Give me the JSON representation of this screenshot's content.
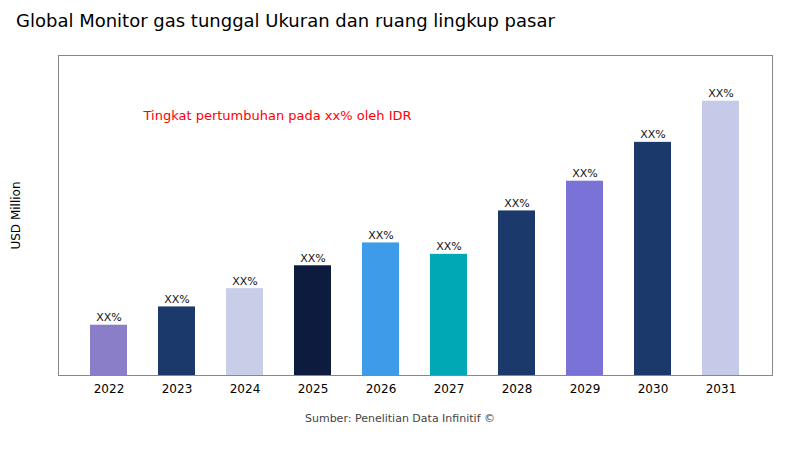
{
  "chart_data": {
    "type": "bar",
    "title": "Global Monitor gas tunggal Ukuran dan ruang lingkup pasar",
    "ylabel": "USD Million",
    "source": "Sumber: Penelitian Data Infinitif ©",
    "annotation": {
      "text": "Tingkat pertumbuhan pada xx% oleh IDR",
      "color": "#FF0000"
    },
    "categories": [
      "2022",
      "2023",
      "2024",
      "2025",
      "2026",
      "2027",
      "2028",
      "2029",
      "2030",
      "2031"
    ],
    "values": [
      2.2,
      3.0,
      3.8,
      4.8,
      5.8,
      5.3,
      7.2,
      8.5,
      10.2,
      12.0
    ],
    "value_labels": [
      "XX%",
      "XX%",
      "XX%",
      "XX%",
      "XX%",
      "XX%",
      "XX%",
      "XX%",
      "XX%",
      "XX%"
    ],
    "data_labels": true,
    "colors": [
      "#8B7EC8",
      "#1B3A6B",
      "#C8CEE8",
      "#0D1B3E",
      "#3D9BE9",
      "#00A8B5",
      "#1B3A6B",
      "#7B72D8",
      "#1B3A6B",
      "#C5CAE9"
    ],
    "ylim": [
      0,
      14
    ],
    "yticks": [],
    "tick_labels": "x",
    "grid": false
  }
}
